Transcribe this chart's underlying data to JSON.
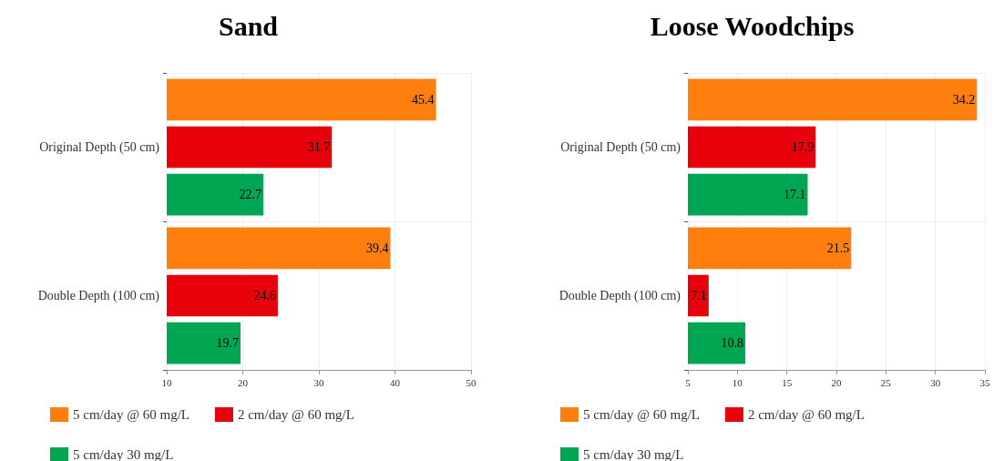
{
  "chart_data": [
    {
      "type": "bar",
      "title": "Sand",
      "orientation": "horizontal",
      "categories": [
        "Original Depth (50 cm)",
        "Double Depth (100 cm)"
      ],
      "series": [
        {
          "name": "5 cm/day @ 60 mg/L",
          "color": "#ff7f0e",
          "values": [
            45.4,
            39.4
          ]
        },
        {
          "name": "2 cm/day @ 60 mg/L",
          "color": "#e8000b",
          "values": [
            31.7,
            24.6
          ]
        },
        {
          "name": "5 cm/day 30 mg/L",
          "color": "#00a651",
          "values": [
            22.7,
            19.7
          ]
        }
      ],
      "xlim": [
        10,
        50
      ],
      "xticks": [
        10,
        20,
        30,
        40,
        50
      ],
      "grid": true,
      "legend": "bottom",
      "data_labels": true
    },
    {
      "type": "bar",
      "title": "Loose Woodchips",
      "orientation": "horizontal",
      "categories": [
        "Original Depth (50 cm)",
        "Double Depth (100 cm)"
      ],
      "series": [
        {
          "name": "5 cm/day @ 60 mg/L",
          "color": "#ff7f0e",
          "values": [
            34.2,
            21.5
          ]
        },
        {
          "name": "2 cm/day @ 60 mg/L",
          "color": "#e8000b",
          "values": [
            17.9,
            7.1
          ]
        },
        {
          "name": "5 cm/day 30 mg/L",
          "color": "#00a651",
          "values": [
            17.1,
            10.8
          ]
        }
      ],
      "xlim": [
        5,
        35
      ],
      "xticks": [
        5,
        10,
        15,
        20,
        25,
        30,
        35
      ],
      "grid": true,
      "legend": "bottom",
      "data_labels": true
    }
  ]
}
